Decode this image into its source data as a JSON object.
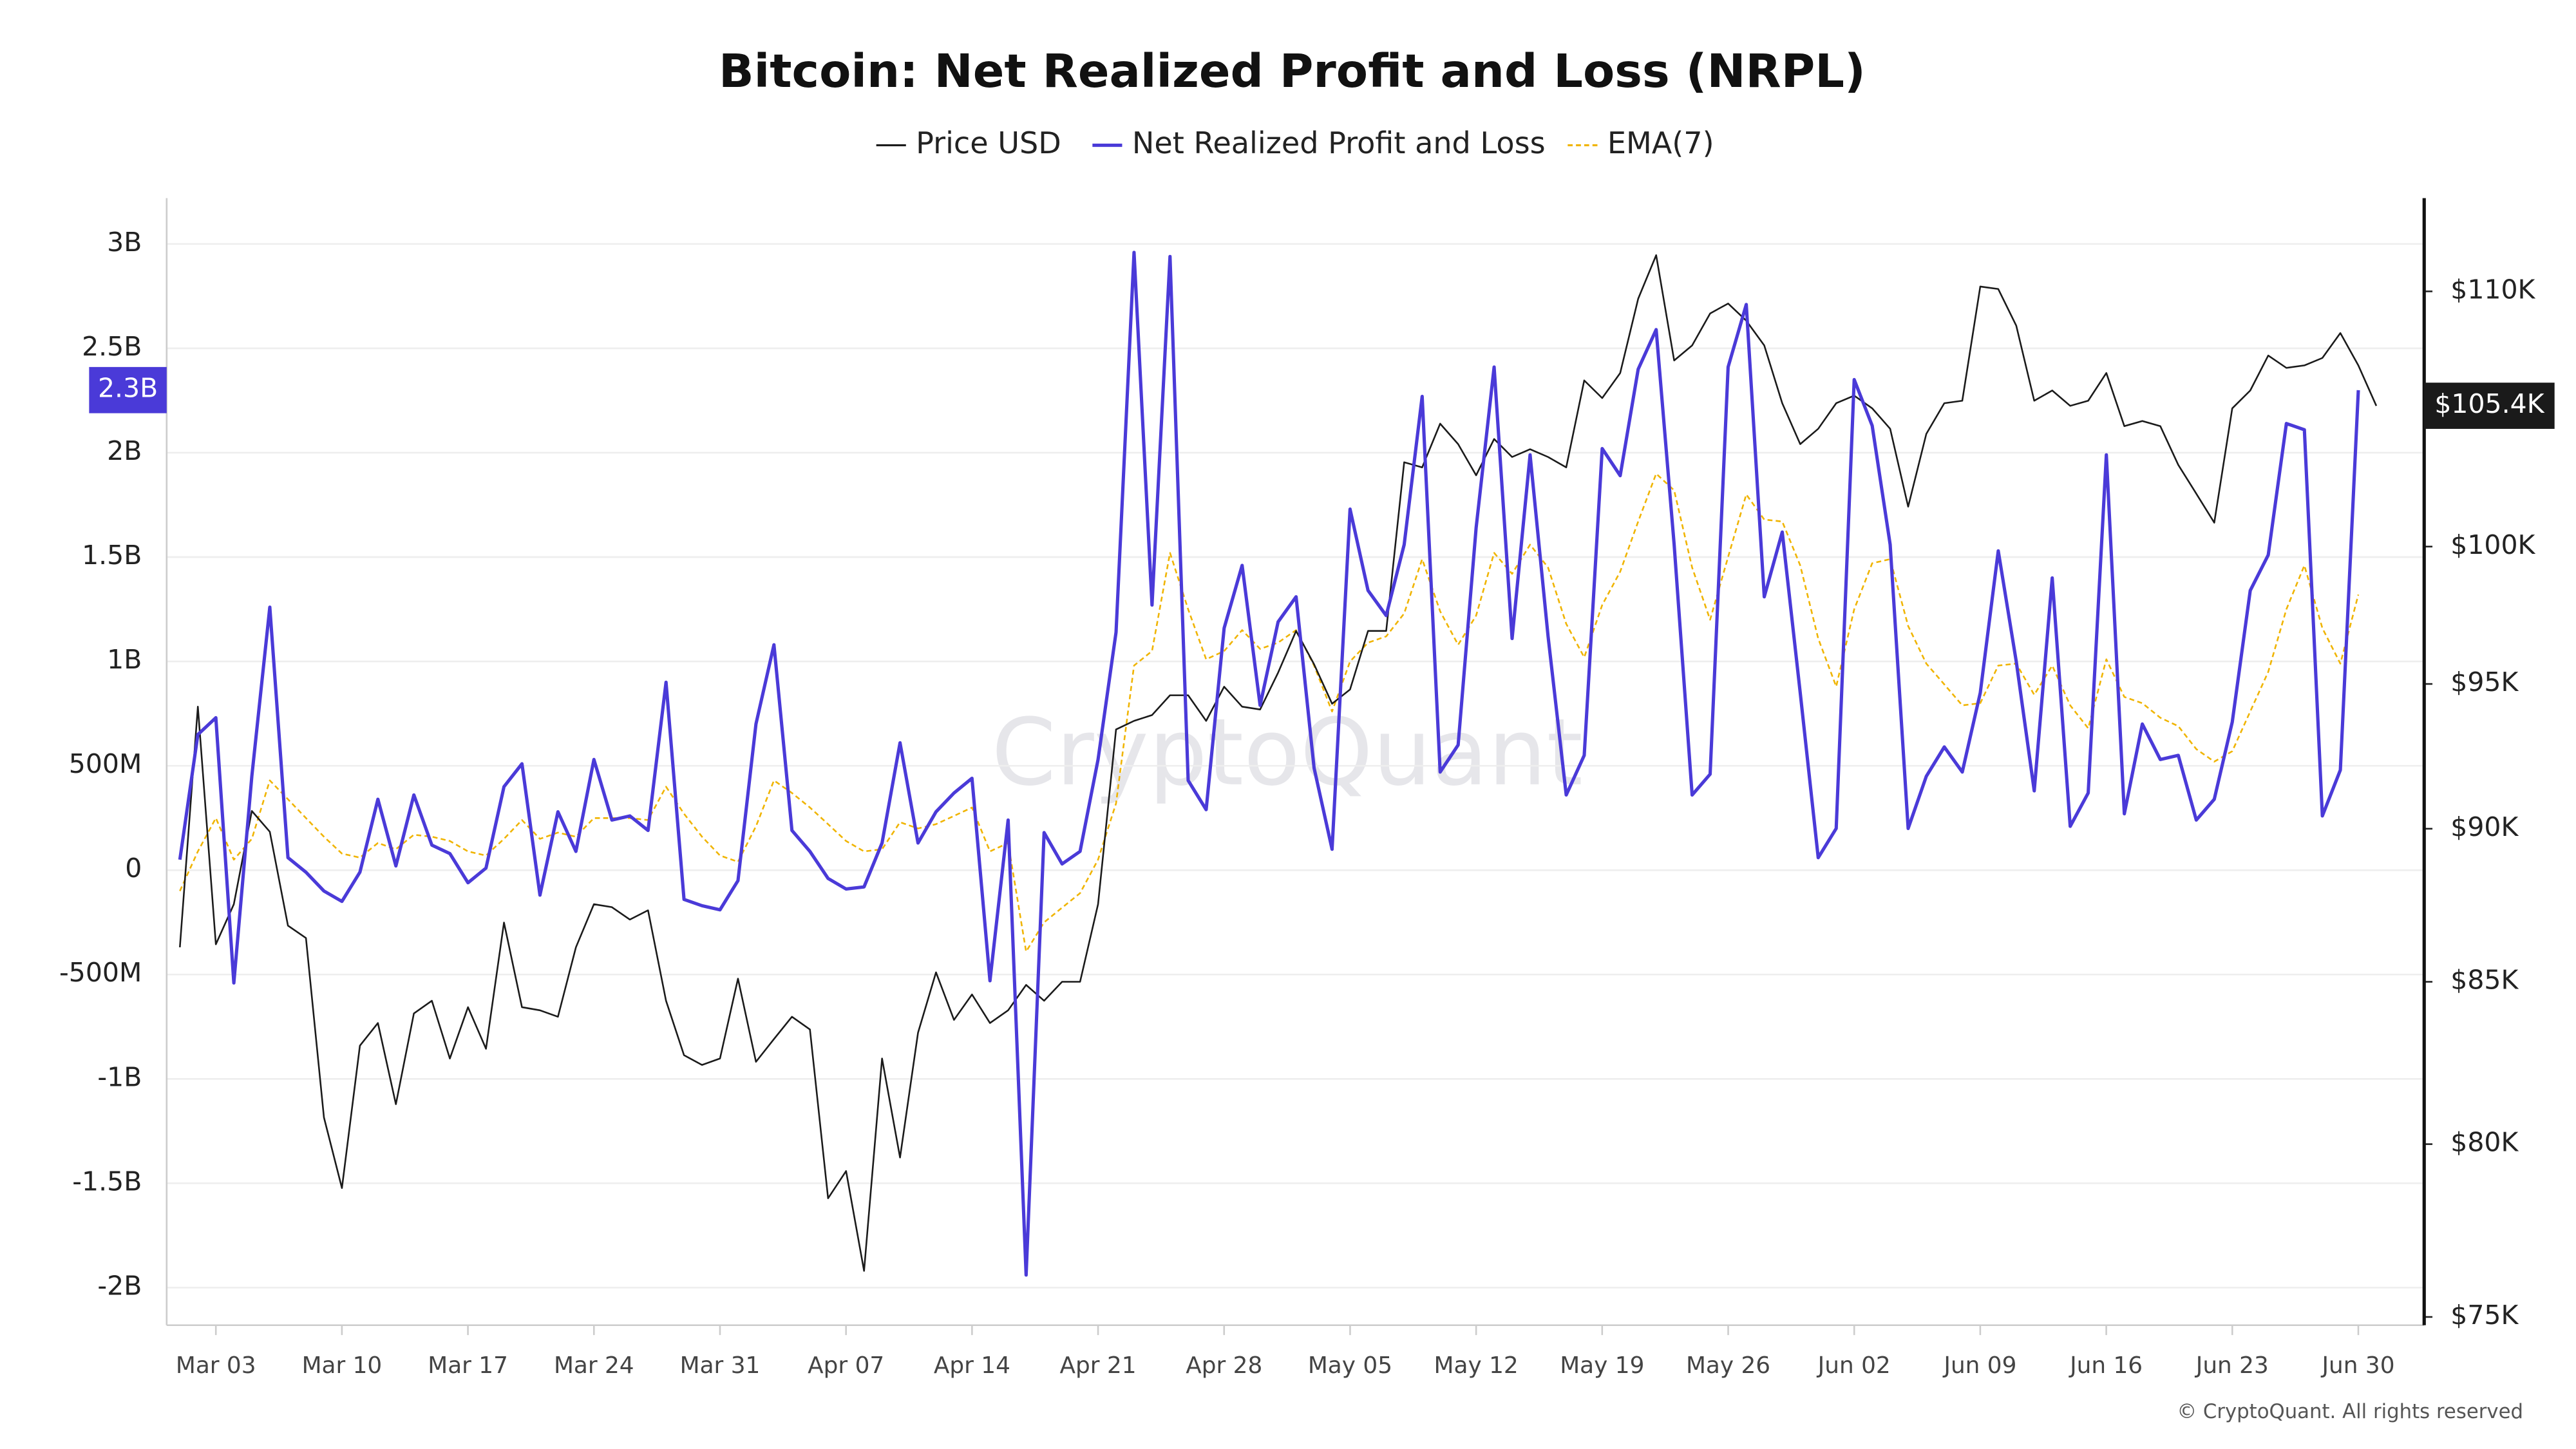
{
  "chart_data": {
    "type": "line",
    "title": "Bitcoin: Net Realized Profit and Loss (NRPL)",
    "watermark": "CryptoQuant",
    "footer": "© CryptoQuant. All rights reserved",
    "categories": [
      null,
      null,
      "Mar 03",
      null,
      null,
      null,
      null,
      null,
      null,
      "Mar 10",
      null,
      null,
      null,
      null,
      null,
      null,
      "Mar 17",
      null,
      null,
      null,
      null,
      null,
      null,
      "Mar 24",
      null,
      null,
      null,
      null,
      null,
      null,
      "Mar 31",
      null,
      null,
      null,
      null,
      null,
      null,
      "Apr 07",
      null,
      null,
      null,
      null,
      null,
      null,
      "Apr 14",
      null,
      null,
      null,
      null,
      null,
      null,
      "Apr 21",
      null,
      null,
      null,
      null,
      null,
      null,
      "Apr 28",
      null,
      null,
      null,
      null,
      null,
      null,
      "May 05",
      null,
      null,
      null,
      null,
      null,
      null,
      "May 12",
      null,
      null,
      null,
      null,
      null,
      null,
      "May 19",
      null,
      null,
      null,
      null,
      null,
      null,
      "May 26",
      null,
      null,
      null,
      null,
      null,
      null,
      "Jun 02",
      null,
      null,
      null,
      null,
      null,
      null,
      "Jun 09",
      null,
      null,
      null,
      null,
      null,
      null,
      "Jun 16",
      null,
      null,
      null,
      null,
      null,
      null,
      "Jun 23",
      null,
      null,
      null,
      null,
      null,
      null,
      "Jun 30",
      null
    ],
    "series": [
      {
        "name": "Price USD",
        "color": "#1a1a1a",
        "axis": "y2",
        "line_style": "solid",
        "last_label": "$105.4K",
        "values": [
          86100,
          94200,
          86200,
          87500,
          90600,
          89900,
          86800,
          86400,
          80800,
          78700,
          83000,
          83700,
          81200,
          84000,
          84400,
          82600,
          84200,
          82900,
          86900,
          84200,
          84100,
          83900,
          86100,
          87500,
          87400,
          87000,
          87300,
          84400,
          82700,
          82400,
          82600,
          85100,
          82500,
          83200,
          83900,
          83500,
          78400,
          79200,
          76300,
          82600,
          79600,
          83400,
          85300,
          83800,
          84600,
          83700,
          84100,
          84900,
          84400,
          85000,
          85000,
          87500,
          93400,
          93700,
          93900,
          94600,
          94600,
          93700,
          94900,
          94200,
          94100,
          95400,
          96900,
          95700,
          94300,
          94800,
          96900,
          96900,
          103200,
          103000,
          104700,
          103900,
          102700,
          104100,
          103400,
          103700,
          103400,
          103000,
          106400,
          105700,
          106700,
          109700,
          111500,
          107200,
          107800,
          109100,
          109500,
          108800,
          107800,
          105500,
          103900,
          104500,
          105500,
          105800,
          105300,
          104500,
          101500,
          104300,
          105500,
          105600,
          110200,
          110100,
          108600,
          105600,
          106000,
          105400,
          105600,
          106700,
          104600,
          104800,
          104600,
          103100,
          102000,
          100900,
          105300,
          106000,
          107400,
          106900,
          107000,
          107300,
          108300,
          107000,
          105400
        ]
      },
      {
        "name": "Net Realized Profit and Loss",
        "color": "#4a3ad8",
        "axis": "y",
        "line_style": "solid",
        "last_label": "2.3B",
        "values": [
          0.05,
          0.65,
          0.73,
          -0.54,
          0.45,
          1.26,
          0.06,
          -0.01,
          -0.1,
          -0.15,
          -0.01,
          0.34,
          0.02,
          0.36,
          0.12,
          0.08,
          -0.06,
          0.01,
          0.4,
          0.51,
          -0.12,
          0.28,
          0.09,
          0.53,
          0.24,
          0.26,
          0.19,
          0.9,
          -0.14,
          -0.17,
          -0.19,
          -0.05,
          0.7,
          1.08,
          0.19,
          0.09,
          -0.04,
          -0.09,
          -0.08,
          0.13,
          0.61,
          0.13,
          0.28,
          0.37,
          0.44,
          -0.53,
          0.24,
          -1.94,
          0.18,
          0.03,
          0.09,
          0.53,
          1.14,
          2.96,
          1.27,
          2.94,
          0.43,
          0.29,
          1.16,
          1.46,
          0.79,
          1.19,
          1.31,
          0.49,
          0.1,
          1.73,
          1.34,
          1.22,
          1.56,
          2.27,
          0.47,
          0.6,
          1.64,
          2.41,
          1.11,
          1.99,
          1.12,
          0.36,
          0.55,
          2.02,
          1.89,
          2.4,
          2.59,
          1.56,
          0.36,
          0.46,
          2.41,
          2.71,
          1.31,
          1.62,
          0.85,
          0.06,
          0.2,
          2.35,
          2.13,
          1.56,
          0.2,
          0.45,
          0.59,
          0.47,
          0.85,
          1.53,
          1.0,
          0.38,
          1.4,
          0.21,
          0.37,
          1.99,
          0.27,
          0.7,
          0.53,
          0.55,
          0.24,
          0.34,
          0.71,
          1.34,
          1.51,
          2.14,
          2.11,
          0.26,
          0.48,
          2.3,
          null
        ]
      },
      {
        "name": "EMA(7)",
        "color": "#f0b400",
        "axis": "y",
        "line_style": "dashed",
        "values": [
          -0.1,
          0.09,
          0.25,
          0.05,
          0.15,
          0.43,
          0.34,
          0.25,
          0.16,
          0.08,
          0.06,
          0.13,
          0.1,
          0.17,
          0.16,
          0.14,
          0.09,
          0.07,
          0.15,
          0.24,
          0.15,
          0.18,
          0.16,
          0.25,
          0.25,
          0.25,
          0.24,
          0.4,
          0.27,
          0.16,
          0.07,
          0.04,
          0.21,
          0.43,
          0.37,
          0.3,
          0.22,
          0.14,
          0.09,
          0.1,
          0.23,
          0.2,
          0.22,
          0.26,
          0.3,
          0.09,
          0.13,
          -0.39,
          -0.25,
          -0.18,
          -0.11,
          0.05,
          0.32,
          0.98,
          1.05,
          1.52,
          1.25,
          1.01,
          1.05,
          1.15,
          1.06,
          1.09,
          1.15,
          0.98,
          0.76,
          1.0,
          1.09,
          1.12,
          1.23,
          1.49,
          1.24,
          1.08,
          1.22,
          1.52,
          1.42,
          1.56,
          1.45,
          1.18,
          1.02,
          1.27,
          1.43,
          1.67,
          1.9,
          1.82,
          1.45,
          1.2,
          1.5,
          1.8,
          1.68,
          1.67,
          1.46,
          1.11,
          0.88,
          1.25,
          1.47,
          1.49,
          1.17,
          0.99,
          0.89,
          0.79,
          0.8,
          0.98,
          0.99,
          0.84,
          0.98,
          0.79,
          0.68,
          1.01,
          0.83,
          0.8,
          0.73,
          0.69,
          0.58,
          0.52,
          0.57,
          0.76,
          0.95,
          1.25,
          1.46,
          1.16,
          0.99,
          1.32,
          null
        ]
      }
    ],
    "ylim": [
      -2.18,
      3.22
    ],
    "yticks": [
      {
        "value": 3,
        "label": "3B"
      },
      {
        "value": 2.5,
        "label": "2.5B"
      },
      {
        "value": 2,
        "label": "2B"
      },
      {
        "value": 1.5,
        "label": "1.5B"
      },
      {
        "value": 1,
        "label": "1B"
      },
      {
        "value": 0.5,
        "label": "500M"
      },
      0,
      {
        "value": -0.5,
        "label": "-500M"
      },
      {
        "value": -1,
        "label": "-1B"
      },
      {
        "value": -1.5,
        "label": "-1.5B"
      },
      {
        "value": -2,
        "label": "-2B"
      }
    ],
    "y2lim": [
      74770,
      113900
    ],
    "y2log": true,
    "y2ticks": [
      {
        "value": 110000,
        "label": "$110K"
      },
      {
        "value": 100000,
        "label": "$100K"
      },
      {
        "value": 95000,
        "label": "$95K"
      },
      {
        "value": 90000,
        "label": "$90K"
      },
      {
        "value": 85000,
        "label": "$85K"
      },
      {
        "value": 80000,
        "label": "$80K"
      },
      {
        "value": 75000,
        "label": "$75K"
      }
    ],
    "grid": true,
    "legend": "top"
  }
}
